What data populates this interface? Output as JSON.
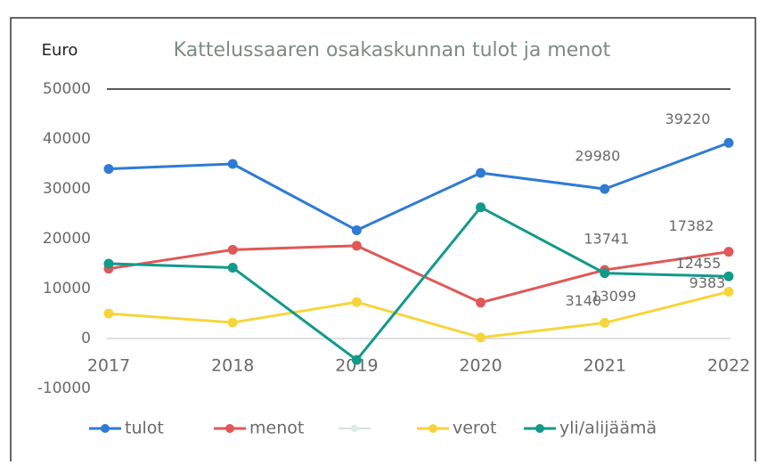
{
  "chart_data": {
    "type": "line",
    "title": "Kattelussaaren osakaskunnan tulot ja menot",
    "y_label": "Euro",
    "categories": [
      "2017",
      "2018",
      "2019",
      "2020",
      "2021",
      "2022"
    ],
    "ylim": [
      -10000,
      50000
    ],
    "yticks": [
      -10000,
      0,
      10000,
      20000,
      30000,
      40000,
      50000
    ],
    "legend": "bottom",
    "series": [
      {
        "name": "tulot",
        "color": "#2f7bd4",
        "values": [
          34000,
          35000,
          21700,
          33200,
          29980,
          39220
        ],
        "data_labels": [
          4,
          5
        ]
      },
      {
        "name": "menot",
        "color": "#e05858",
        "values": [
          14000,
          17800,
          18600,
          7200,
          13741,
          17382
        ],
        "data_labels": [
          4,
          5
        ]
      },
      {
        "name": "verot",
        "color": "#f6d53c",
        "values": [
          5000,
          3200,
          7300,
          200,
          3140,
          9383
        ],
        "data_labels": [
          4,
          5
        ]
      },
      {
        "name": "yli/alijäämä",
        "color": "#129a8a",
        "values": [
          15000,
          14200,
          -4300,
          26300,
          13099,
          12455
        ],
        "data_labels": [
          4,
          5
        ]
      }
    ]
  }
}
